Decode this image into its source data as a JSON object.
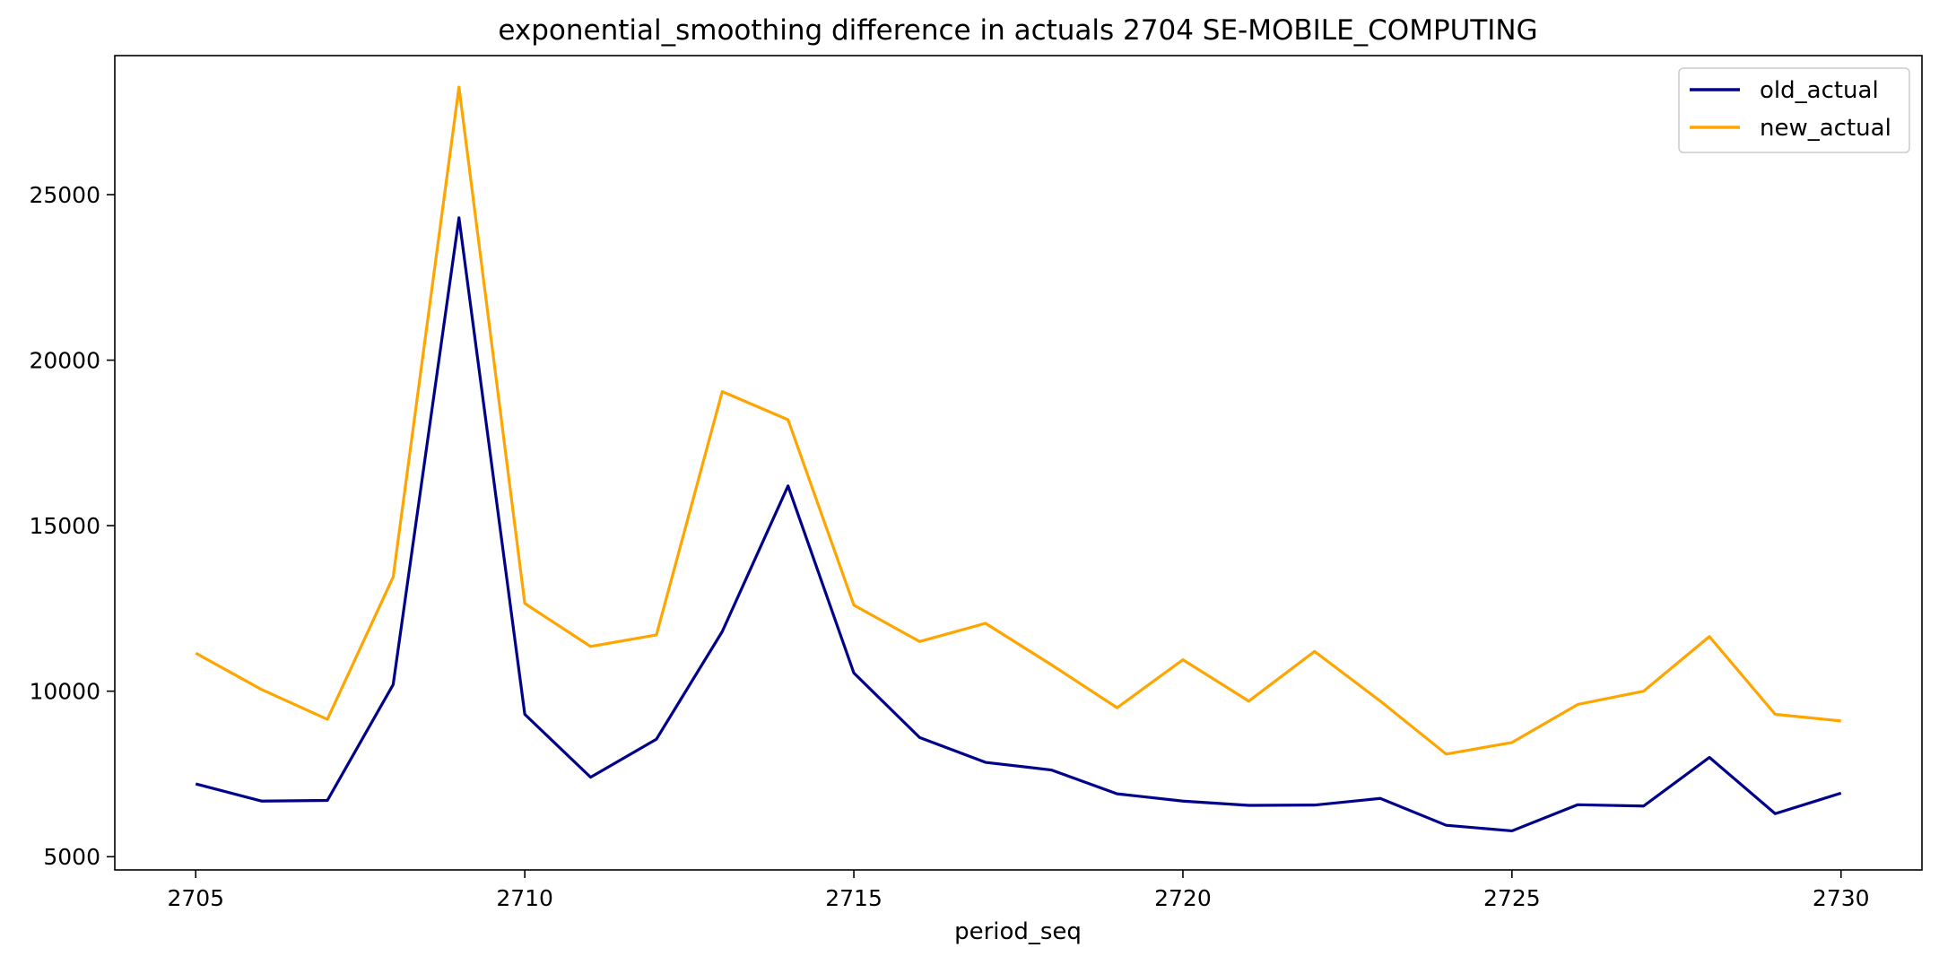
{
  "chart_data": {
    "type": "line",
    "title": "exponential_smoothing difference in actuals 2704 SE-MOBILE_COMPUTING",
    "xlabel": "period_seq",
    "ylabel": "",
    "x": [
      2705,
      2706,
      2707,
      2708,
      2709,
      2710,
      2711,
      2712,
      2713,
      2714,
      2715,
      2716,
      2717,
      2718,
      2719,
      2720,
      2721,
      2722,
      2723,
      2724,
      2725,
      2726,
      2727,
      2728,
      2729,
      2730
    ],
    "series": [
      {
        "name": "old_actual",
        "color": "#00008b",
        "values": [
          7200,
          6680,
          6700,
          10200,
          24300,
          9300,
          7400,
          8550,
          11800,
          16200,
          10550,
          8600,
          7850,
          7620,
          6900,
          6680,
          6550,
          6560,
          6760,
          5950,
          5780,
          6570,
          6530,
          8000,
          6300,
          6920
        ]
      },
      {
        "name": "new_actual",
        "color": "#ffa500",
        "values": [
          11150,
          10050,
          9150,
          13450,
          28250,
          12650,
          11350,
          11700,
          19050,
          18200,
          12600,
          11500,
          12050,
          10800,
          9500,
          10950,
          9700,
          11200,
          9700,
          8100,
          8450,
          9600,
          10000,
          11650,
          9300,
          9100
        ]
      }
    ],
    "xticks": [
      2705,
      2710,
      2715,
      2720,
      2725,
      2730
    ],
    "yticks": [
      5000,
      10000,
      15000,
      20000,
      25000
    ],
    "xlim": [
      2703.77,
      2731.23
    ],
    "ylim": [
      4600,
      29200
    ],
    "legend_position": "top-right",
    "grid": false
  }
}
